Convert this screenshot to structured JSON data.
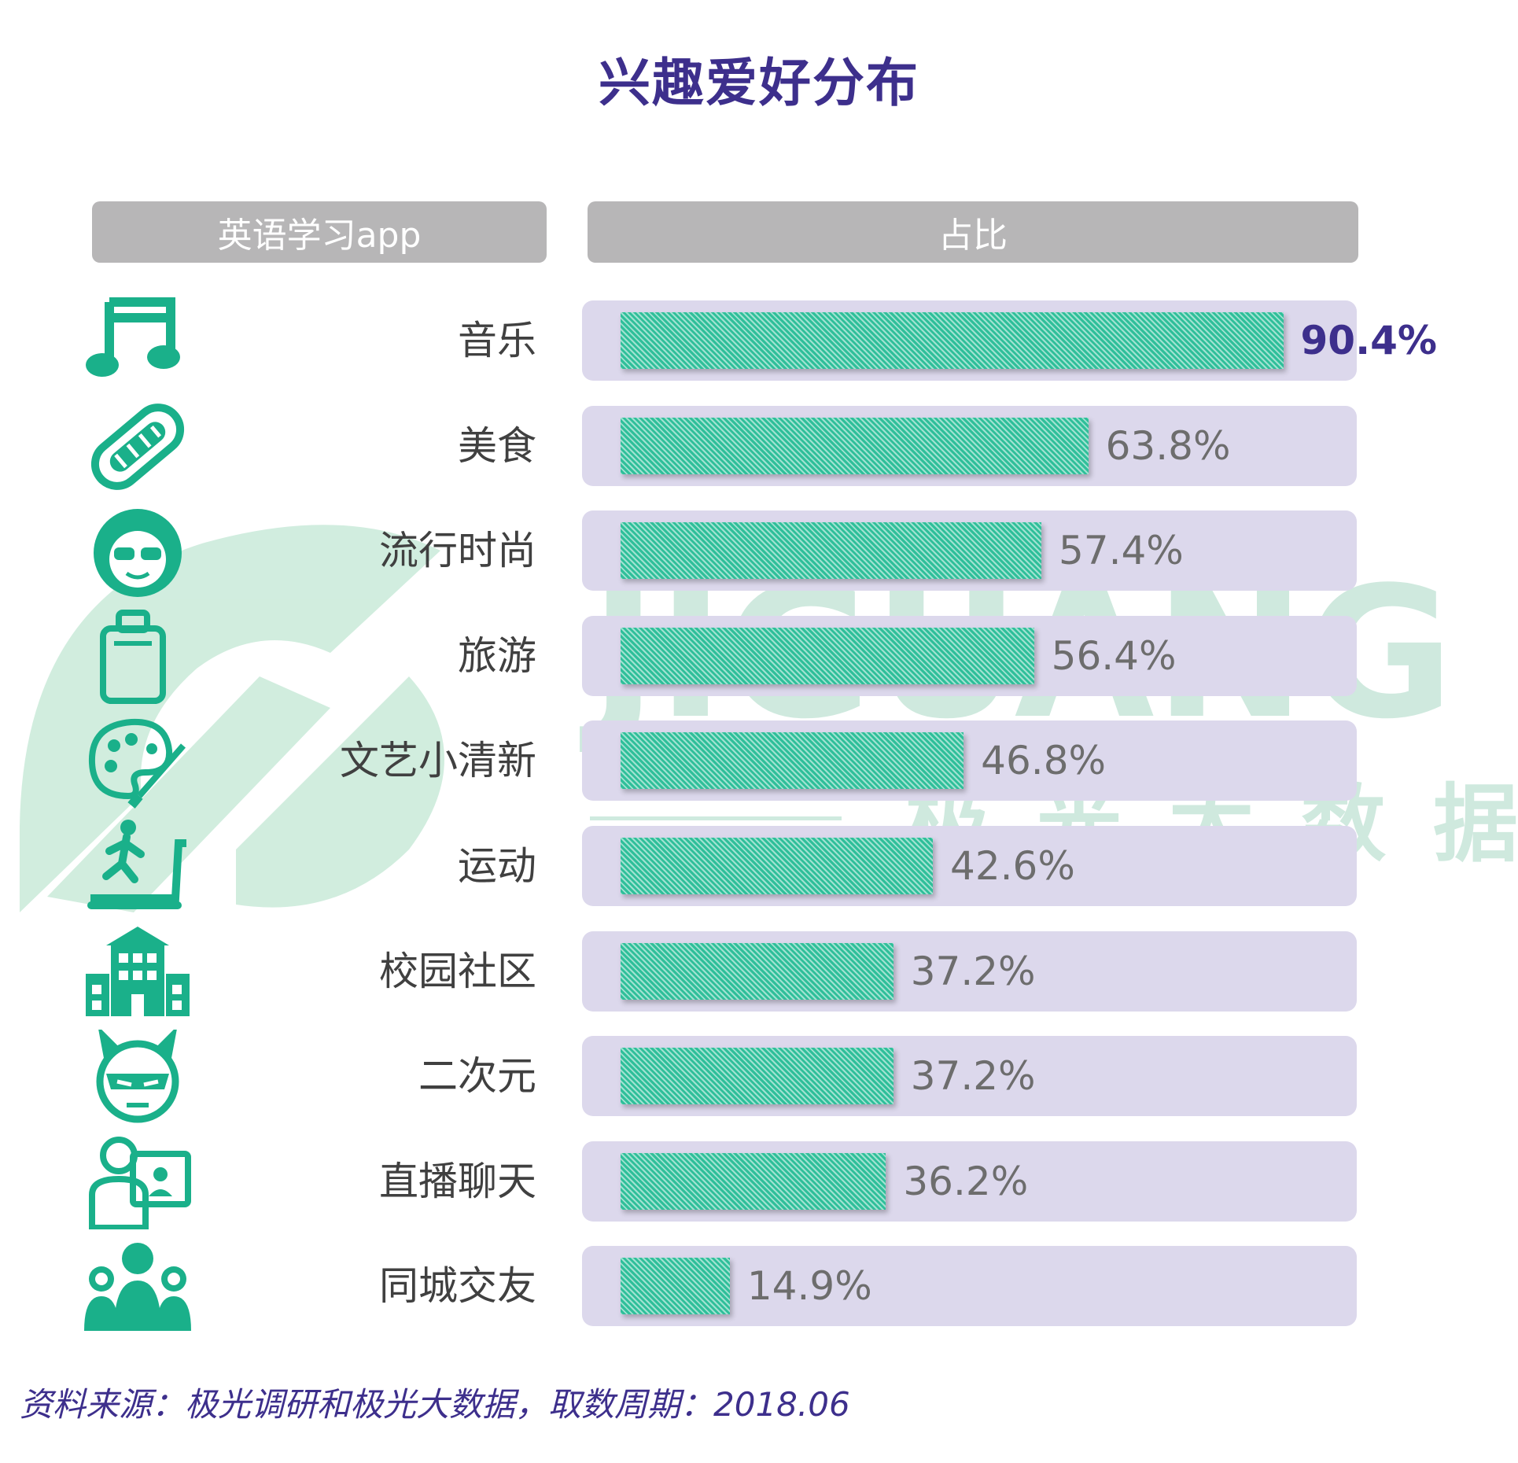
{
  "title": "兴趣爱好分布",
  "header": {
    "left": "英语学习app",
    "right": "占比"
  },
  "watermark": {
    "brand": "JIGUANG",
    "cn": "极光大数据"
  },
  "colors": {
    "bar": "#2fbf9a",
    "row_bg": "#dcd8ec",
    "title": "#3d2f8c",
    "value_highlight": "#3d2f8c",
    "icon": "#1ab08a"
  },
  "chart_data": {
    "type": "bar",
    "orientation": "horizontal",
    "unit": "%",
    "xlim": [
      0,
      100
    ],
    "grid": false,
    "categories": [
      "音乐",
      "美食",
      "流行时尚",
      "旅游",
      "文艺小清新",
      "运动",
      "校园社区",
      "二次元",
      "直播聊天",
      "同城交友"
    ],
    "values": [
      90.4,
      63.8,
      57.4,
      56.4,
      46.8,
      42.6,
      37.2,
      37.2,
      36.2,
      14.9
    ],
    "value_labels": [
      "90.4%",
      "63.8%",
      "57.4%",
      "56.4%",
      "46.8%",
      "42.6%",
      "37.2%",
      "37.2%",
      "36.2%",
      "14.9%"
    ],
    "icons": [
      "music-note-icon",
      "hotdog-icon",
      "sunglasses-face-icon",
      "suitcase-icon",
      "palette-icon",
      "treadmill-icon",
      "school-building-icon",
      "devil-face-icon",
      "live-stream-icon",
      "friends-group-icon"
    ]
  },
  "source": "资料来源：极光调研和极光大数据，取数周期：2018.06"
}
